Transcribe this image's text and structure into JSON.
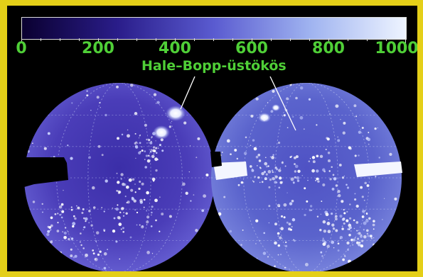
{
  "colorbar": {
    "tick_labels": [
      "0",
      "200",
      "400",
      "600",
      "800",
      "1000"
    ],
    "colors": [
      "#0a0030",
      "#2a1d8a",
      "#5a5bd0",
      "#9fb3f0",
      "#eef4ff"
    ]
  },
  "annotation": {
    "label": "Hale–Bopp-üstökös"
  },
  "colors": {
    "frame": "#e4cf18",
    "label": "#4fcf37",
    "sky": "#4a3db8",
    "background": "#000000"
  }
}
